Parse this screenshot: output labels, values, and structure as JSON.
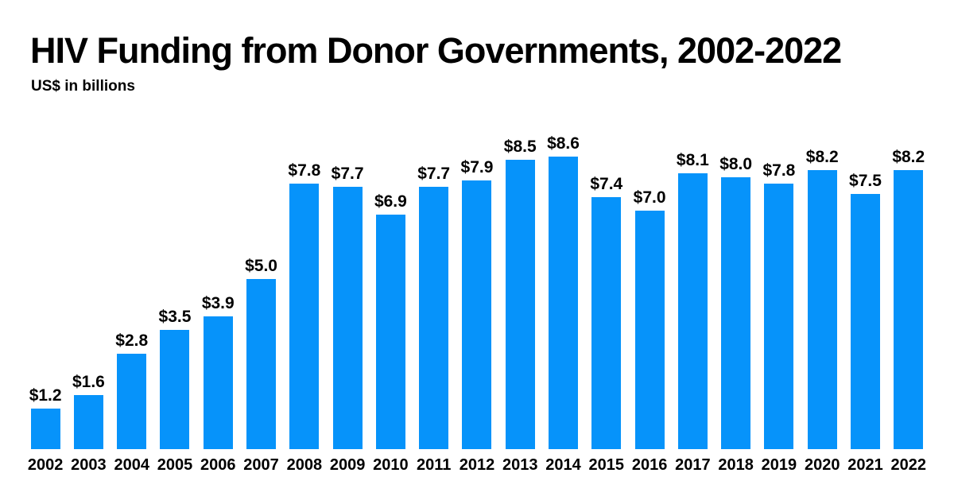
{
  "chart": {
    "title": "HIV Funding from Donor Governments, 2002-2022",
    "subtitle": "US$ in billions"
  },
  "colors": {
    "bar": "#0693fa",
    "text": "#000000",
    "background": "#ffffff"
  },
  "chart_data": {
    "type": "bar",
    "title": "HIV Funding from Donor Governments, 2002-2022",
    "subtitle": "US$ in billions",
    "xlabel": "",
    "ylabel": "US$ in billions",
    "ylim": [
      0,
      9
    ],
    "grid": false,
    "legend": false,
    "categories": [
      "2002",
      "2003",
      "2004",
      "2005",
      "2006",
      "2007",
      "2008",
      "2009",
      "2010",
      "2011",
      "2012",
      "2013",
      "2014",
      "2015",
      "2016",
      "2017",
      "2018",
      "2019",
      "2020",
      "2021",
      "2022"
    ],
    "values": [
      1.2,
      1.6,
      2.8,
      3.5,
      3.9,
      5.0,
      7.8,
      7.7,
      6.9,
      7.7,
      7.9,
      8.5,
      8.6,
      7.4,
      7.0,
      8.1,
      8.0,
      7.8,
      8.2,
      7.5,
      8.2
    ],
    "value_labels": [
      "$1.2",
      "$1.6",
      "$2.8",
      "$3.5",
      "$3.9",
      "$5.0",
      "$7.8",
      "$7.7",
      "$6.9",
      "$7.7",
      "$7.9",
      "$8.5",
      "$8.6",
      "$7.4",
      "$7.0",
      "$8.1",
      "$8.0",
      "$7.8",
      "$8.2",
      "$7.5",
      "$8.2"
    ]
  }
}
